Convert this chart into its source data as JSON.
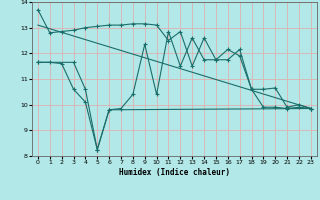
{
  "title": "",
  "xlabel": "Humidex (Indice chaleur)",
  "bg_color": "#b2e8e8",
  "grid_color": "#e0b0b0",
  "line_color": "#1a6e6a",
  "xlim": [
    -0.5,
    23.5
  ],
  "ylim": [
    8,
    14
  ],
  "yticks": [
    8,
    9,
    10,
    11,
    12,
    13,
    14
  ],
  "xticks": [
    0,
    1,
    2,
    3,
    4,
    5,
    6,
    7,
    8,
    9,
    10,
    11,
    12,
    13,
    14,
    15,
    16,
    17,
    18,
    19,
    20,
    21,
    22,
    23
  ],
  "series1_x": [
    0,
    1,
    2,
    3,
    4,
    5,
    6,
    7,
    8,
    9,
    10,
    11,
    12,
    13,
    14,
    15,
    16,
    17,
    18,
    19,
    20,
    21,
    22,
    23
  ],
  "series1_y": [
    13.7,
    12.8,
    12.85,
    12.9,
    13.0,
    13.05,
    13.1,
    13.1,
    13.15,
    13.15,
    13.1,
    12.5,
    12.85,
    11.5,
    12.6,
    11.75,
    11.75,
    12.15,
    10.6,
    10.6,
    10.65,
    9.9,
    10.0,
    9.85
  ],
  "series2_x": [
    0,
    1,
    2,
    3,
    4,
    5,
    6,
    7,
    8,
    9,
    10,
    11,
    12,
    13,
    14,
    15,
    16,
    17,
    18,
    19,
    20,
    21,
    22,
    23
  ],
  "series2_y": [
    11.65,
    11.65,
    11.6,
    10.6,
    10.1,
    8.25,
    9.8,
    9.85,
    10.4,
    12.35,
    10.4,
    12.85,
    11.5,
    12.6,
    11.75,
    11.75,
    12.15,
    11.9,
    10.6,
    9.9,
    9.9,
    9.85,
    9.9,
    9.85
  ],
  "series3_x": [
    0,
    23
  ],
  "series3_y": [
    13.1,
    9.85
  ],
  "series4_x": [
    0,
    3,
    4,
    5,
    6,
    23
  ],
  "series4_y": [
    11.65,
    11.65,
    10.6,
    8.25,
    9.8,
    9.85
  ]
}
